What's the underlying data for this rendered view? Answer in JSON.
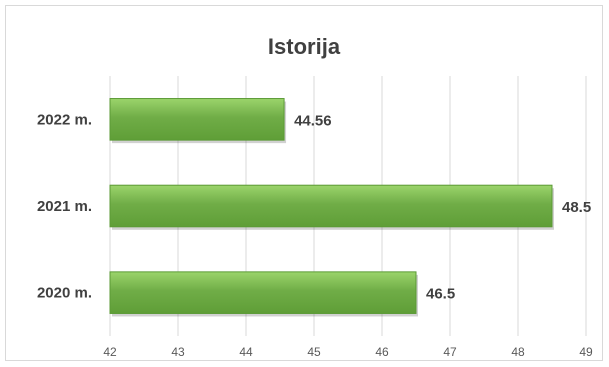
{
  "chart_data": {
    "type": "bar",
    "orientation": "horizontal",
    "title": "Istorija",
    "categories": [
      "2020 m.",
      "2021 m.",
      "2022 m."
    ],
    "values": [
      46.5,
      48.5,
      44.56
    ],
    "value_labels": [
      "46.5",
      "48.5",
      "44.56"
    ],
    "xlim": [
      42,
      49
    ],
    "xticks": [
      42,
      43,
      44,
      45,
      46,
      47,
      48,
      49
    ],
    "grid": true,
    "bar_color": "#70ad47",
    "bar_edge_color": "#5b9a35"
  }
}
